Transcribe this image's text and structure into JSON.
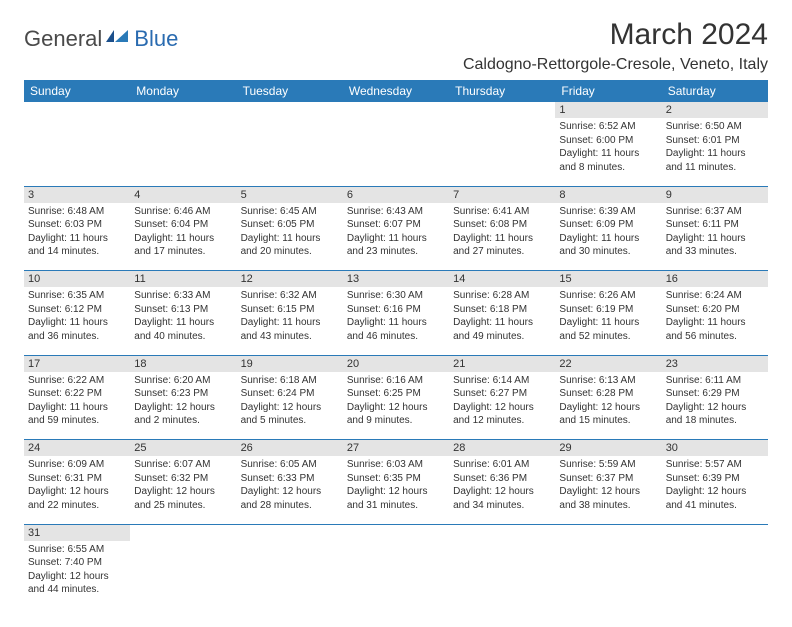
{
  "logo": {
    "part1": "General",
    "part2": "Blue"
  },
  "title": "March 2024",
  "location": "Caldogno-Rettorgole-Cresole, Veneto, Italy",
  "colors": {
    "header_bg": "#2a7ab8",
    "header_fg": "#ffffff",
    "daynum_bg": "#e4e4e4",
    "rule": "#2a7ab8",
    "logo_gray": "#4a4a4a",
    "logo_blue": "#2a6bb0",
    "page_bg": "#ffffff"
  },
  "weekdays": [
    "Sunday",
    "Monday",
    "Tuesday",
    "Wednesday",
    "Thursday",
    "Friday",
    "Saturday"
  ],
  "weeks": [
    {
      "nums": [
        "",
        "",
        "",
        "",
        "",
        "1",
        "2"
      ],
      "cells": [
        null,
        null,
        null,
        null,
        null,
        {
          "sunrise": "Sunrise: 6:52 AM",
          "sunset": "Sunset: 6:00 PM",
          "day1": "Daylight: 11 hours",
          "day2": "and 8 minutes."
        },
        {
          "sunrise": "Sunrise: 6:50 AM",
          "sunset": "Sunset: 6:01 PM",
          "day1": "Daylight: 11 hours",
          "day2": "and 11 minutes."
        }
      ]
    },
    {
      "nums": [
        "3",
        "4",
        "5",
        "6",
        "7",
        "8",
        "9"
      ],
      "cells": [
        {
          "sunrise": "Sunrise: 6:48 AM",
          "sunset": "Sunset: 6:03 PM",
          "day1": "Daylight: 11 hours",
          "day2": "and 14 minutes."
        },
        {
          "sunrise": "Sunrise: 6:46 AM",
          "sunset": "Sunset: 6:04 PM",
          "day1": "Daylight: 11 hours",
          "day2": "and 17 minutes."
        },
        {
          "sunrise": "Sunrise: 6:45 AM",
          "sunset": "Sunset: 6:05 PM",
          "day1": "Daylight: 11 hours",
          "day2": "and 20 minutes."
        },
        {
          "sunrise": "Sunrise: 6:43 AM",
          "sunset": "Sunset: 6:07 PM",
          "day1": "Daylight: 11 hours",
          "day2": "and 23 minutes."
        },
        {
          "sunrise": "Sunrise: 6:41 AM",
          "sunset": "Sunset: 6:08 PM",
          "day1": "Daylight: 11 hours",
          "day2": "and 27 minutes."
        },
        {
          "sunrise": "Sunrise: 6:39 AM",
          "sunset": "Sunset: 6:09 PM",
          "day1": "Daylight: 11 hours",
          "day2": "and 30 minutes."
        },
        {
          "sunrise": "Sunrise: 6:37 AM",
          "sunset": "Sunset: 6:11 PM",
          "day1": "Daylight: 11 hours",
          "day2": "and 33 minutes."
        }
      ]
    },
    {
      "nums": [
        "10",
        "11",
        "12",
        "13",
        "14",
        "15",
        "16"
      ],
      "cells": [
        {
          "sunrise": "Sunrise: 6:35 AM",
          "sunset": "Sunset: 6:12 PM",
          "day1": "Daylight: 11 hours",
          "day2": "and 36 minutes."
        },
        {
          "sunrise": "Sunrise: 6:33 AM",
          "sunset": "Sunset: 6:13 PM",
          "day1": "Daylight: 11 hours",
          "day2": "and 40 minutes."
        },
        {
          "sunrise": "Sunrise: 6:32 AM",
          "sunset": "Sunset: 6:15 PM",
          "day1": "Daylight: 11 hours",
          "day2": "and 43 minutes."
        },
        {
          "sunrise": "Sunrise: 6:30 AM",
          "sunset": "Sunset: 6:16 PM",
          "day1": "Daylight: 11 hours",
          "day2": "and 46 minutes."
        },
        {
          "sunrise": "Sunrise: 6:28 AM",
          "sunset": "Sunset: 6:18 PM",
          "day1": "Daylight: 11 hours",
          "day2": "and 49 minutes."
        },
        {
          "sunrise": "Sunrise: 6:26 AM",
          "sunset": "Sunset: 6:19 PM",
          "day1": "Daylight: 11 hours",
          "day2": "and 52 minutes."
        },
        {
          "sunrise": "Sunrise: 6:24 AM",
          "sunset": "Sunset: 6:20 PM",
          "day1": "Daylight: 11 hours",
          "day2": "and 56 minutes."
        }
      ]
    },
    {
      "nums": [
        "17",
        "18",
        "19",
        "20",
        "21",
        "22",
        "23"
      ],
      "cells": [
        {
          "sunrise": "Sunrise: 6:22 AM",
          "sunset": "Sunset: 6:22 PM",
          "day1": "Daylight: 11 hours",
          "day2": "and 59 minutes."
        },
        {
          "sunrise": "Sunrise: 6:20 AM",
          "sunset": "Sunset: 6:23 PM",
          "day1": "Daylight: 12 hours",
          "day2": "and 2 minutes."
        },
        {
          "sunrise": "Sunrise: 6:18 AM",
          "sunset": "Sunset: 6:24 PM",
          "day1": "Daylight: 12 hours",
          "day2": "and 5 minutes."
        },
        {
          "sunrise": "Sunrise: 6:16 AM",
          "sunset": "Sunset: 6:25 PM",
          "day1": "Daylight: 12 hours",
          "day2": "and 9 minutes."
        },
        {
          "sunrise": "Sunrise: 6:14 AM",
          "sunset": "Sunset: 6:27 PM",
          "day1": "Daylight: 12 hours",
          "day2": "and 12 minutes."
        },
        {
          "sunrise": "Sunrise: 6:13 AM",
          "sunset": "Sunset: 6:28 PM",
          "day1": "Daylight: 12 hours",
          "day2": "and 15 minutes."
        },
        {
          "sunrise": "Sunrise: 6:11 AM",
          "sunset": "Sunset: 6:29 PM",
          "day1": "Daylight: 12 hours",
          "day2": "and 18 minutes."
        }
      ]
    },
    {
      "nums": [
        "24",
        "25",
        "26",
        "27",
        "28",
        "29",
        "30"
      ],
      "cells": [
        {
          "sunrise": "Sunrise: 6:09 AM",
          "sunset": "Sunset: 6:31 PM",
          "day1": "Daylight: 12 hours",
          "day2": "and 22 minutes."
        },
        {
          "sunrise": "Sunrise: 6:07 AM",
          "sunset": "Sunset: 6:32 PM",
          "day1": "Daylight: 12 hours",
          "day2": "and 25 minutes."
        },
        {
          "sunrise": "Sunrise: 6:05 AM",
          "sunset": "Sunset: 6:33 PM",
          "day1": "Daylight: 12 hours",
          "day2": "and 28 minutes."
        },
        {
          "sunrise": "Sunrise: 6:03 AM",
          "sunset": "Sunset: 6:35 PM",
          "day1": "Daylight: 12 hours",
          "day2": "and 31 minutes."
        },
        {
          "sunrise": "Sunrise: 6:01 AM",
          "sunset": "Sunset: 6:36 PM",
          "day1": "Daylight: 12 hours",
          "day2": "and 34 minutes."
        },
        {
          "sunrise": "Sunrise: 5:59 AM",
          "sunset": "Sunset: 6:37 PM",
          "day1": "Daylight: 12 hours",
          "day2": "and 38 minutes."
        },
        {
          "sunrise": "Sunrise: 5:57 AM",
          "sunset": "Sunset: 6:39 PM",
          "day1": "Daylight: 12 hours",
          "day2": "and 41 minutes."
        }
      ]
    },
    {
      "nums": [
        "31",
        "",
        "",
        "",
        "",
        "",
        ""
      ],
      "cells": [
        {
          "sunrise": "Sunrise: 6:55 AM",
          "sunset": "Sunset: 7:40 PM",
          "day1": "Daylight: 12 hours",
          "day2": "and 44 minutes."
        },
        null,
        null,
        null,
        null,
        null,
        null
      ]
    }
  ]
}
